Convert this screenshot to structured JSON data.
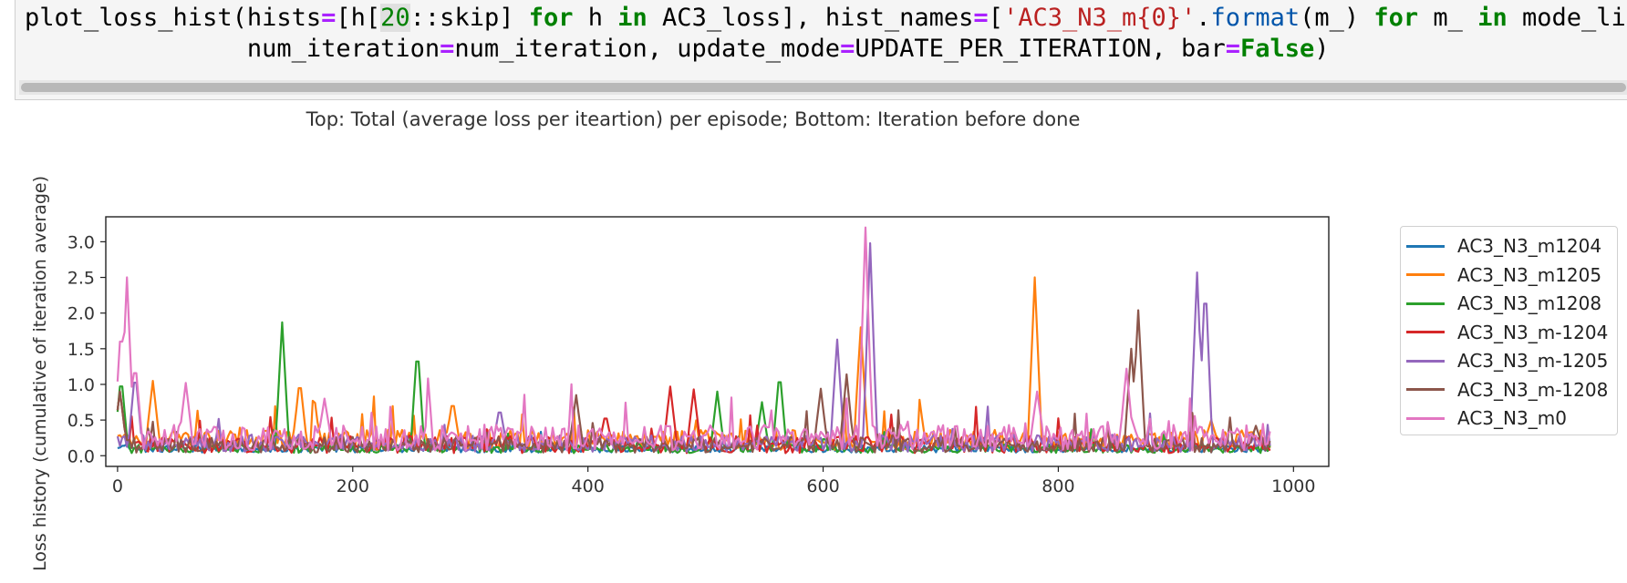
{
  "code_cell": {
    "line1": [
      {
        "t": "plot_loss_hist(hists",
        "c": ""
      },
      {
        "t": "=",
        "c": "op"
      },
      {
        "t": "[h[",
        "c": ""
      },
      {
        "t": "20",
        "c": "num"
      },
      {
        "t": "::skip] ",
        "c": ""
      },
      {
        "t": "for",
        "c": "kw"
      },
      {
        "t": " h ",
        "c": ""
      },
      {
        "t": "in",
        "c": "kw"
      },
      {
        "t": " AC3_loss], hist_names",
        "c": ""
      },
      {
        "t": "=",
        "c": "op"
      },
      {
        "t": "[",
        "c": ""
      },
      {
        "t": "'AC3_N3_m{0}'",
        "c": "str"
      },
      {
        "t": ".",
        "c": ""
      },
      {
        "t": "format",
        "c": "fn"
      },
      {
        "t": "(m_) ",
        "c": ""
      },
      {
        "t": "for",
        "c": "kw"
      },
      {
        "t": " m_ ",
        "c": ""
      },
      {
        "t": "in",
        "c": "kw"
      },
      {
        "t": " mode_list],",
        "c": ""
      }
    ],
    "line2": [
      {
        "t": "               num_iteration",
        "c": ""
      },
      {
        "t": "=",
        "c": "op"
      },
      {
        "t": "num_iteration, update_mode",
        "c": ""
      },
      {
        "t": "=",
        "c": "op"
      },
      {
        "t": "UPDATE_PER_ITERATION, bar",
        "c": ""
      },
      {
        "t": "=",
        "c": "op"
      },
      {
        "t": "False",
        "c": "kw"
      },
      {
        "t": ")",
        "c": ""
      }
    ]
  },
  "chart_data": {
    "type": "line",
    "title": "Top: Total (average loss per iteartion) per episode; Bottom: Iteration before done",
    "xlabel": "",
    "ylabel": "Loss history (cumulative of iteration average)",
    "xlim": [
      -10,
      1030
    ],
    "ylim": [
      -0.15,
      3.35
    ],
    "xticks": [
      "0",
      "200",
      "400",
      "600",
      "800",
      "1000"
    ],
    "yticks": [
      "0.0",
      "0.5",
      "1.0",
      "1.5",
      "2.0",
      "2.5",
      "3.0"
    ],
    "grid": false,
    "legend_position": "right",
    "series": [
      {
        "name": "AC3_N3_m1204",
        "color": "#1f77b4",
        "base": 0.08,
        "noise": 0.05,
        "peaks": [
          [
            5,
            0.15
          ],
          [
            830,
            0.28
          ]
        ]
      },
      {
        "name": "AC3_N3_m1205",
        "color": "#ff7f0e",
        "base": 0.18,
        "noise": 0.14,
        "peaks": [
          [
            30,
            1.05
          ],
          [
            155,
            1.1
          ],
          [
            285,
            0.8
          ],
          [
            632,
            1.8
          ],
          [
            780,
            2.5
          ],
          [
            930,
            0.5
          ]
        ]
      },
      {
        "name": "AC3_N3_m1208",
        "color": "#2ca02c",
        "base": 0.08,
        "noise": 0.06,
        "peaks": [
          [
            3,
            1.15
          ],
          [
            140,
            1.87
          ],
          [
            255,
            1.57
          ],
          [
            510,
            0.9
          ],
          [
            548,
            0.75
          ],
          [
            563,
            1.22
          ]
        ]
      },
      {
        "name": "AC3_N3_m-1204",
        "color": "#d62728",
        "base": 0.12,
        "noise": 0.12,
        "peaks": [
          [
            2,
            0.9
          ],
          [
            415,
            0.6
          ],
          [
            470,
            0.97
          ],
          [
            490,
            0.93
          ]
        ]
      },
      {
        "name": "AC3_N3_m-1205",
        "color": "#9467bd",
        "base": 0.14,
        "noise": 0.12,
        "peaks": [
          [
            15,
            1.2
          ],
          [
            325,
            0.7
          ],
          [
            612,
            1.63
          ],
          [
            640,
            2.98
          ],
          [
            918,
            2.57
          ],
          [
            925,
            2.53
          ]
        ]
      },
      {
        "name": "AC3_N3_m-1208",
        "color": "#8c564b",
        "base": 0.12,
        "noise": 0.11,
        "peaks": [
          [
            2,
            0.9
          ],
          [
            390,
            0.85
          ],
          [
            598,
            0.94
          ],
          [
            620,
            1.14
          ],
          [
            862,
            1.5
          ],
          [
            868,
            2.04
          ],
          [
            968,
            0.42
          ]
        ]
      },
      {
        "name": "AC3_N3_m0",
        "color": "#e377c2",
        "base": 0.2,
        "noise": 0.18,
        "peaks": [
          [
            3,
            1.88
          ],
          [
            8,
            2.5
          ],
          [
            15,
            1.35
          ],
          [
            58,
            1.02
          ],
          [
            176,
            0.8
          ],
          [
            636,
            3.2
          ],
          [
            782,
            0.9
          ],
          [
            858,
            1.22
          ]
        ]
      }
    ]
  }
}
